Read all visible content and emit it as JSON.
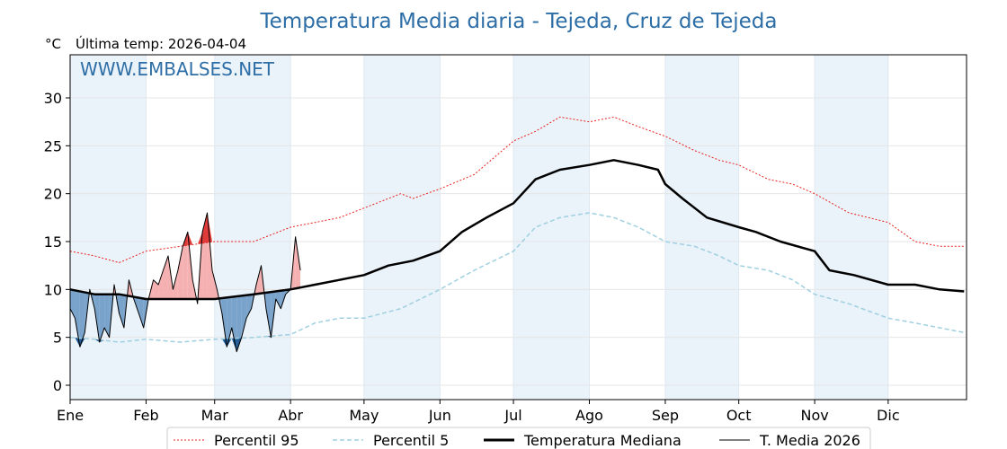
{
  "chart_data": {
    "type": "line",
    "title": "Temperatura Media diaria - Tejeda, Cruz de Tejeda",
    "unit_label": "°C",
    "last_temp_label": "Última temp: 2026-04-04",
    "watermark": "WWW.EMBALSES.NET",
    "ylim": [
      -1.5,
      34.5
    ],
    "xlim": [
      0,
      366
    ],
    "y_ticks": [
      0,
      5,
      10,
      15,
      20,
      25,
      30
    ],
    "month_labels": [
      "Ene",
      "Feb",
      "Mar",
      "Abr",
      "May",
      "Jun",
      "Jul",
      "Ago",
      "Sep",
      "Oct",
      "Nov",
      "Dic"
    ],
    "month_starts": [
      0,
      31,
      59,
      90,
      120,
      151,
      181,
      212,
      243,
      273,
      304,
      334
    ],
    "grid": true,
    "legend_position": "bottom",
    "colors": {
      "p95": "#e8231e",
      "p5": "#9fd0e0",
      "median": "#000000",
      "current": "#000000",
      "above_fill": "#f4a9a9",
      "above_fill_strong": "#e03a3a",
      "below_fill": "#6d9ac4",
      "below_fill_strong": "#1f5a94",
      "shade": "#eaf2fa",
      "title": "#2e6ea6"
    },
    "series": [
      {
        "name": "Percentil 95",
        "key": "p95",
        "x": [
          0,
          10,
          20,
          31,
          45,
          59,
          75,
          90,
          100,
          110,
          120,
          135,
          140,
          151,
          165,
          181,
          190,
          200,
          212,
          222,
          232,
          243,
          255,
          265,
          273,
          285,
          295,
          304,
          318,
          334,
          345,
          355,
          365
        ],
        "y": [
          14,
          13.5,
          12.8,
          14,
          14.5,
          15,
          15,
          16.5,
          17,
          17.5,
          18.5,
          20,
          19.5,
          20.5,
          22,
          25.5,
          26.5,
          28,
          27.5,
          28,
          27,
          26,
          24.5,
          23.5,
          23,
          21.5,
          21,
          20,
          18,
          17,
          15,
          14.5,
          14.5
        ]
      },
      {
        "name": "Percentil 5",
        "key": "p5",
        "x": [
          0,
          10,
          20,
          31,
          45,
          59,
          75,
          90,
          100,
          110,
          120,
          135,
          151,
          165,
          181,
          190,
          200,
          212,
          222,
          232,
          243,
          255,
          265,
          273,
          285,
          295,
          304,
          318,
          334,
          345,
          355,
          365
        ],
        "y": [
          5,
          4.8,
          4.5,
          4.8,
          4.5,
          4.8,
          5,
          5.3,
          6.5,
          7,
          7,
          8,
          10,
          12,
          14,
          16.5,
          17.5,
          18,
          17.5,
          16.5,
          15,
          14.5,
          13.5,
          12.5,
          12,
          11,
          9.5,
          8.5,
          7,
          6.5,
          6,
          5.5
        ]
      },
      {
        "name": "Temperatura Mediana",
        "key": "median",
        "x": [
          0,
          10,
          20,
          31,
          45,
          59,
          75,
          90,
          100,
          110,
          120,
          130,
          140,
          151,
          160,
          170,
          181,
          190,
          200,
          212,
          222,
          232,
          240,
          243,
          250,
          260,
          273,
          280,
          290,
          304,
          310,
          320,
          334,
          345,
          355,
          365
        ],
        "y": [
          10,
          9.5,
          9.5,
          9,
          9,
          9,
          9.5,
          10,
          10.5,
          11,
          11.5,
          12.5,
          13,
          14,
          16,
          17.5,
          19,
          21.5,
          22.5,
          23,
          23.5,
          23,
          22.5,
          21,
          19.5,
          17.5,
          16.5,
          16,
          15,
          14,
          12,
          11.5,
          10.5,
          10.5,
          10,
          9.8
        ]
      },
      {
        "name": "T. Media 2026",
        "key": "current",
        "x": [
          0,
          2,
          4,
          6,
          8,
          10,
          12,
          14,
          16,
          18,
          20,
          22,
          24,
          26,
          28,
          30,
          32,
          34,
          36,
          38,
          40,
          42,
          44,
          46,
          48,
          50,
          52,
          54,
          56,
          58,
          60,
          62,
          64,
          66,
          68,
          70,
          72,
          74,
          76,
          78,
          80,
          82,
          84,
          86,
          88,
          90,
          92,
          94
        ],
        "y": [
          8,
          7,
          4,
          5.5,
          10,
          8,
          4.5,
          6,
          5,
          10.5,
          7.5,
          6,
          11,
          9,
          7.5,
          6,
          9,
          11,
          10.5,
          12,
          13.5,
          10,
          12,
          14.5,
          16,
          11,
          8.5,
          16,
          18,
          12,
          10,
          7.5,
          4,
          6,
          3.5,
          5,
          7,
          8,
          10.5,
          12.5,
          8,
          5,
          9,
          8,
          9.5,
          10,
          15.5,
          12
        ]
      }
    ]
  },
  "legend": {
    "items": [
      {
        "label": "Percentil 95"
      },
      {
        "label": "Percentil 5"
      },
      {
        "label": "Temperatura Mediana"
      },
      {
        "label": "T. Media 2026"
      }
    ]
  }
}
